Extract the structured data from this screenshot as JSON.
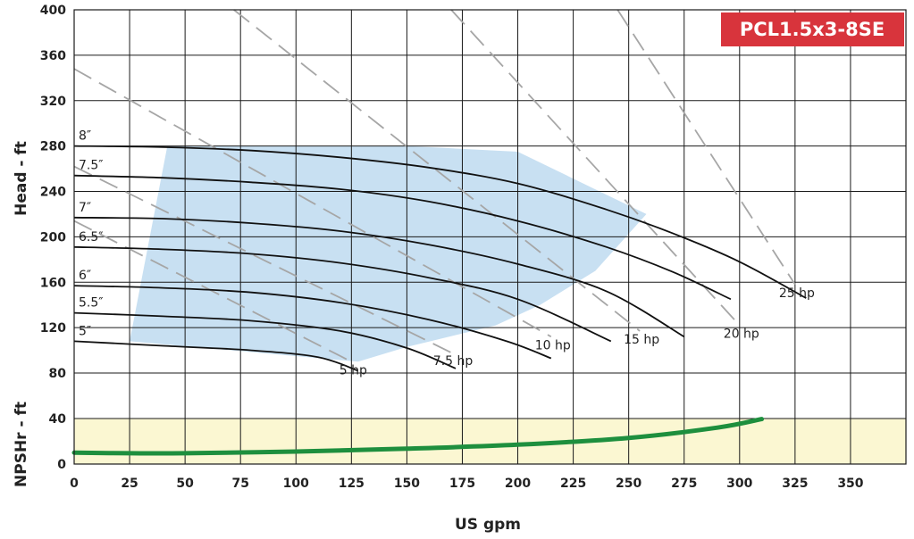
{
  "chart_data": {
    "type": "line",
    "title": "PCL1.5x3-8SE",
    "xlabel": "US gpm",
    "ylabel_head": "Head - ft",
    "ylabel_npshr": "NPSHr - ft",
    "xlim": [
      0,
      375
    ],
    "head_ylim": [
      80,
      400
    ],
    "npshr_ylim": [
      0,
      40
    ],
    "x_ticks": [
      "0",
      "25",
      "50",
      "75",
      "100",
      "125",
      "150",
      "175",
      "200",
      "225",
      "250",
      "275",
      "300",
      "325",
      "350"
    ],
    "head_ticks": [
      "80",
      "120",
      "160",
      "200",
      "240",
      "280",
      "320",
      "360",
      "400"
    ],
    "npshr_ticks": [
      "0",
      "40"
    ],
    "grid": true,
    "colors": {
      "impeller_curve": "#111111",
      "hp_line": "#a6a6a6",
      "efficiency_region": "#c8e0f2",
      "npshr_band": "#fbf7d2",
      "npshr_curve": "#1e8f3e",
      "badge": "#d8343c"
    },
    "impeller_curves": [
      {
        "label": "8″",
        "x": [
          0,
          40,
          80,
          120,
          160,
          200,
          240,
          270,
          300,
          330
        ],
        "y": [
          280,
          279,
          276,
          270,
          261,
          247,
          224,
          203,
          178,
          146
        ]
      },
      {
        "label": "7.5″",
        "x": [
          0,
          40,
          80,
          120,
          160,
          200,
          240,
          270,
          296
        ],
        "y": [
          254,
          252,
          248,
          242,
          231,
          214,
          191,
          169,
          145
        ]
      },
      {
        "label": "7″",
        "x": [
          0,
          40,
          80,
          120,
          160,
          200,
          240,
          275
        ],
        "y": [
          217,
          216,
          212,
          205,
          193,
          176,
          152,
          112
        ]
      },
      {
        "label": "6.5″",
        "x": [
          0,
          40,
          80,
          120,
          160,
          200,
          242
        ],
        "y": [
          191,
          189,
          185,
          177,
          164,
          145,
          108
        ]
      },
      {
        "label": "6″",
        "x": [
          0,
          40,
          80,
          120,
          160,
          195,
          215
        ],
        "y": [
          157,
          155,
          151,
          142,
          127,
          108,
          93
        ]
      },
      {
        "label": "5.5″",
        "x": [
          0,
          40,
          80,
          120,
          150,
          172
        ],
        "y": [
          133,
          130,
          126,
          117,
          102,
          84
        ]
      },
      {
        "label": "5″",
        "x": [
          0,
          40,
          80,
          110,
          128
        ],
        "y": [
          108,
          104,
          100,
          94,
          82
        ]
      }
    ],
    "hp_lines": [
      {
        "label": "5 hp",
        "x": [
          0,
          125
        ],
        "y": [
          214,
          90
        ]
      },
      {
        "label": "7.5 hp",
        "x": [
          0,
          170
        ],
        "y": [
          262,
          98
        ]
      },
      {
        "label": "10 hp",
        "x": [
          0,
          215
        ],
        "y": [
          348,
          112
        ]
      },
      {
        "label": "15 hp",
        "x": [
          72,
          255
        ],
        "y": [
          400,
          117
        ]
      },
      {
        "label": "20 hp",
        "x": [
          170,
          300
        ],
        "y": [
          400,
          122
        ]
      },
      {
        "label": "25 hp",
        "x": [
          245,
          325
        ],
        "y": [
          400,
          158
        ]
      }
    ],
    "efficiency_region": {
      "x": [
        25,
        42,
        150,
        200,
        258,
        235,
        210,
        190,
        165,
        150,
        128,
        25
      ],
      "y": [
        108,
        280,
        280,
        275,
        220,
        170,
        140,
        122,
        110,
        103,
        90,
        108
      ]
    },
    "npshr_curve": {
      "x": [
        0,
        25,
        50,
        100,
        150,
        200,
        250,
        290,
        310
      ],
      "y": [
        10,
        9.5,
        9.5,
        11,
        13.5,
        17,
        23,
        32,
        39.5
      ]
    },
    "npshr_band": [
      0,
      40
    ]
  }
}
